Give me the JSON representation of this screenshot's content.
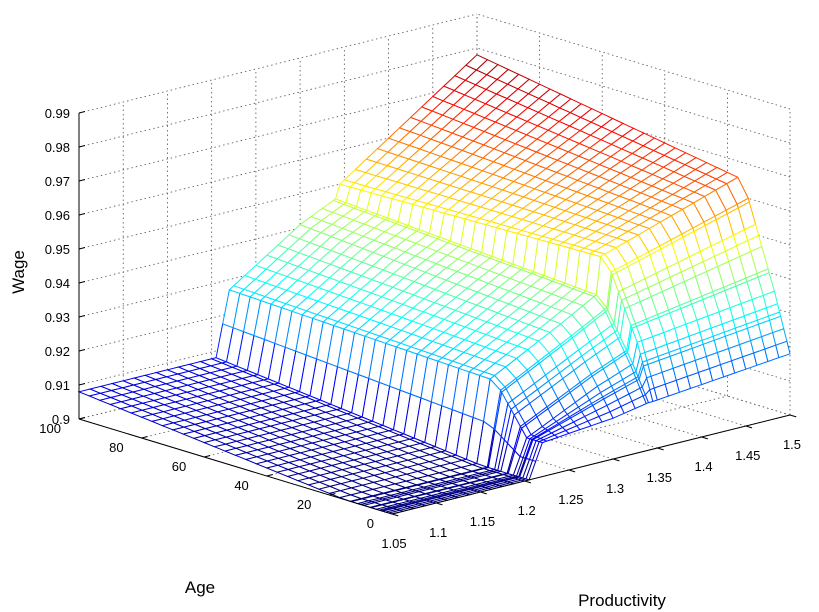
{
  "chart_data": {
    "type": "surface",
    "title": "",
    "xlabel": "Productivity",
    "ylabel": "Age",
    "zlabel": "Wage",
    "xlim": [
      1.05,
      1.5
    ],
    "ylim": [
      0,
      100
    ],
    "zlim": [
      0.9,
      0.99
    ],
    "x_ticks": [
      "1.05",
      "1.1",
      "1.15",
      "1.2",
      "1.25",
      "1.3",
      "1.35",
      "1.4",
      "1.45",
      "1.5"
    ],
    "y_ticks": [
      "0",
      "20",
      "40",
      "60",
      "80",
      "100"
    ],
    "z_ticks": [
      "0.9",
      "0.91",
      "0.92",
      "0.93",
      "0.94",
      "0.95",
      "0.96",
      "0.97",
      "0.98",
      "0.99"
    ],
    "grid": true,
    "colormap": "jet",
    "surface": {
      "productivity": [
        1.05,
        1.2,
        1.205,
        1.22,
        1.3,
        1.34,
        1.345,
        1.5
      ],
      "age": [
        0,
        5,
        15,
        100
      ],
      "wage": [
        [
          0.9,
          0.9,
          0.9,
          0.91,
          0.912,
          0.914,
          0.914,
          0.918
        ],
        [
          0.9,
          0.9,
          0.9,
          0.91,
          0.92,
          0.924,
          0.93,
          0.935
        ],
        [
          0.9,
          0.9,
          0.9,
          0.924,
          0.935,
          0.941,
          0.952,
          0.965
        ],
        [
          0.908,
          0.908,
          0.908,
          0.927,
          0.941,
          0.946,
          0.95,
          0.978
        ]
      ]
    }
  }
}
